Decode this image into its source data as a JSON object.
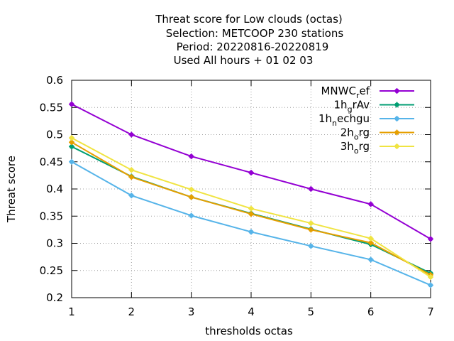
{
  "chart_data": {
    "type": "line",
    "title_lines": [
      "Threat score  for Low clouds (octas)",
      "Selection: METCOOP    230 stations",
      "Period: 20220816-20220819",
      "Used  All hours  + 01 02 03"
    ],
    "xlabel": "thresholds octas",
    "ylabel": "Threat score",
    "xlim": [
      1,
      7
    ],
    "ylim": [
      0.2,
      0.6
    ],
    "x_ticks": [
      1,
      2,
      3,
      4,
      5,
      6,
      7
    ],
    "y_ticks": [
      0.2,
      0.25,
      0.3,
      0.35,
      0.4,
      0.45,
      0.5,
      0.55,
      0.6
    ],
    "grid": true,
    "legend_position": "top-right",
    "x": [
      1,
      2,
      3,
      4,
      5,
      6,
      7
    ],
    "series": [
      {
        "name_base": "MNWC",
        "name_sub": "r",
        "name_rest": "ef",
        "color": "#9400d3",
        "values": [
          0.556,
          0.5,
          0.46,
          0.43,
          0.4,
          0.372,
          0.308
        ]
      },
      {
        "name_base": "1h",
        "name_sub": "g",
        "name_rest": "rAv",
        "color": "#009e73",
        "values": [
          0.478,
          0.423,
          0.385,
          0.355,
          0.326,
          0.298,
          0.245
        ]
      },
      {
        "name_base": "1h",
        "name_sub": "n",
        "name_rest": "echgu",
        "color": "#56b4e9",
        "values": [
          0.45,
          0.388,
          0.351,
          0.321,
          0.295,
          0.27,
          0.223
        ]
      },
      {
        "name_base": "2h",
        "name_sub": "o",
        "name_rest": "rg",
        "color": "#e69f00",
        "values": [
          0.486,
          0.422,
          0.385,
          0.354,
          0.325,
          0.301,
          0.242
        ]
      },
      {
        "name_base": "3h",
        "name_sub": "o",
        "name_rest": "rg",
        "color": "#f0e442",
        "values": [
          0.494,
          0.435,
          0.399,
          0.364,
          0.337,
          0.309,
          0.238
        ]
      }
    ]
  }
}
